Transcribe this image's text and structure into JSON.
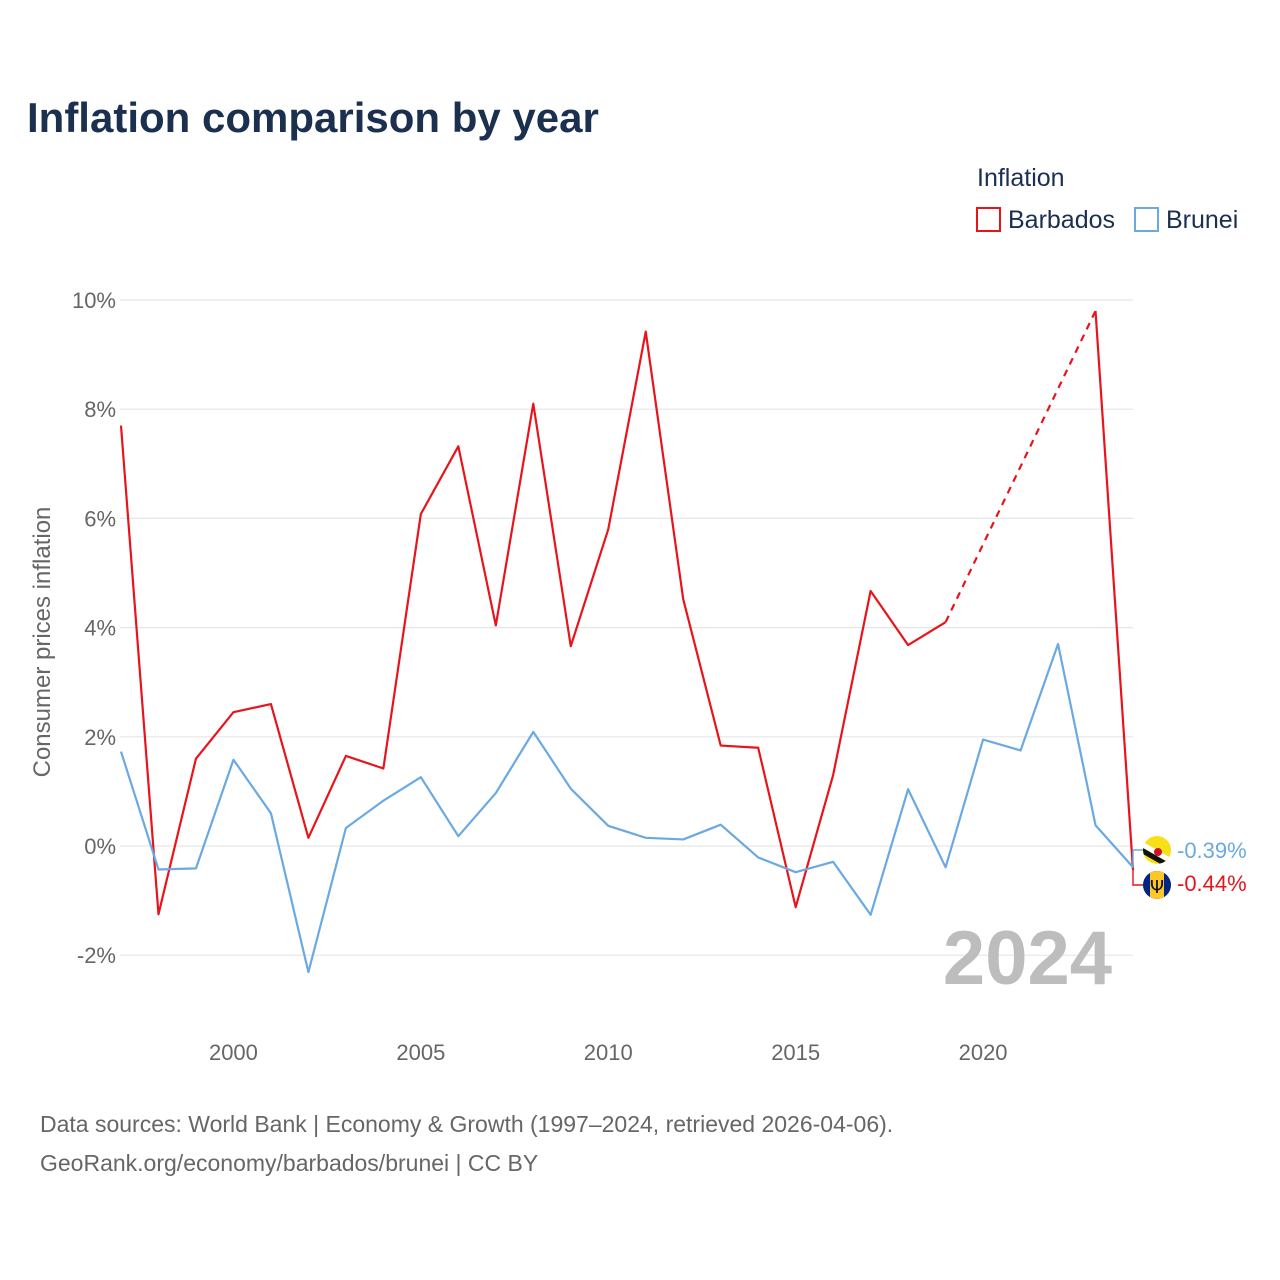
{
  "title": "Inflation comparison by year",
  "legend": {
    "title": "Inflation",
    "entries": [
      {
        "name": "Barbados",
        "color": "#e8141c"
      },
      {
        "name": "Brunei",
        "color": "#6aa9e2"
      }
    ]
  },
  "watermark_year": "2024",
  "source": {
    "line1": "Data sources: World Bank | Economy & Growth (1997–2024, retrieved 2026-04-06).",
    "line2": "GeoRank.org/economy/barbados/brunei | CC BY"
  },
  "chart_data": {
    "type": "line",
    "title": "Inflation comparison by year",
    "xlabel": "",
    "ylabel": "Consumer prices inflation",
    "xlim": [
      1997,
      2024
    ],
    "ylim": [
      -3,
      10
    ],
    "x": [
      1997,
      1998,
      1999,
      2000,
      2001,
      2002,
      2003,
      2004,
      2005,
      2006,
      2007,
      2008,
      2009,
      2010,
      2011,
      2012,
      2013,
      2014,
      2015,
      2016,
      2017,
      2018,
      2019,
      2020,
      2021,
      2022,
      2023,
      2024
    ],
    "x_ticks": [
      2000,
      2005,
      2010,
      2015,
      2020
    ],
    "y_ticks": [
      -2,
      0,
      2,
      4,
      6,
      8,
      10
    ],
    "y_tick_labels": [
      "-2%",
      "0%",
      "2%",
      "4%",
      "6%",
      "8%",
      "10%"
    ],
    "series": [
      {
        "name": "Barbados",
        "color": "#e8141c",
        "values": [
          7.7,
          -1.25,
          1.6,
          2.45,
          2.6,
          0.15,
          1.65,
          1.42,
          6.08,
          7.32,
          4.04,
          8.1,
          3.66,
          5.8,
          9.42,
          4.52,
          1.84,
          1.8,
          -1.12,
          1.3,
          4.67,
          3.68,
          4.1,
          null,
          null,
          null,
          9.8,
          -0.44
        ],
        "dashed_gap": {
          "from": 2019,
          "to": 2023
        },
        "end_label": "-0.44%"
      },
      {
        "name": "Brunei",
        "color": "#6aa9e2",
        "values": [
          1.73,
          -0.43,
          -0.41,
          1.58,
          0.6,
          -2.31,
          0.33,
          0.83,
          1.26,
          0.18,
          0.97,
          2.09,
          1.05,
          0.37,
          0.15,
          0.12,
          0.39,
          -0.21,
          -0.48,
          -0.29,
          -1.26,
          1.04,
          -0.39,
          1.95,
          1.75,
          3.7,
          0.38,
          -0.39
        ],
        "end_label": "-0.39%"
      }
    ]
  }
}
